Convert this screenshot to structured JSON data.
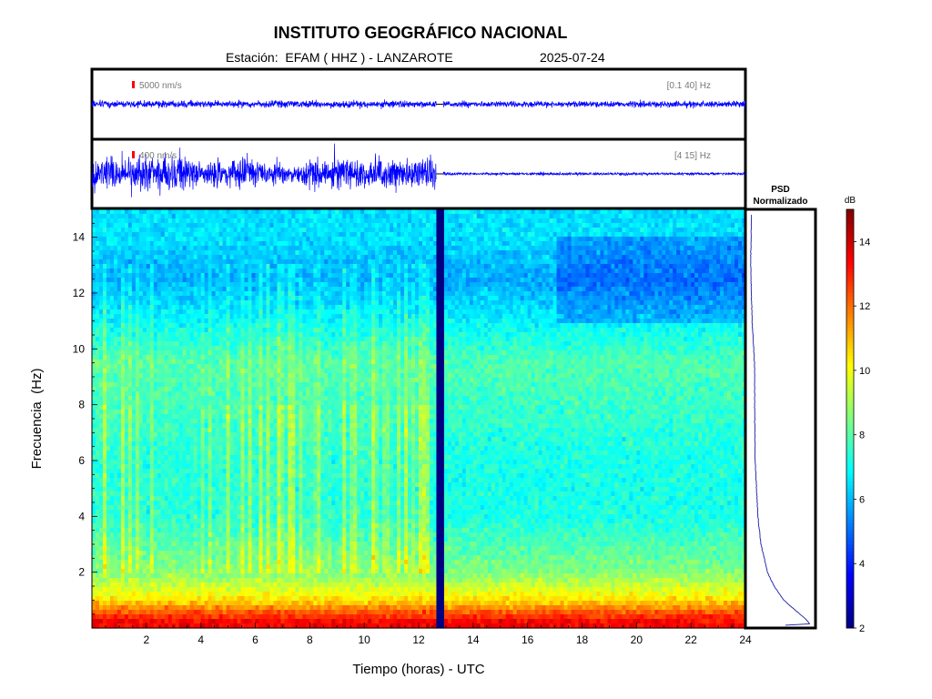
{
  "header": {
    "title": "INSTITUTO GEOGRÁFICO NACIONAL",
    "station_label": "Estación:",
    "station": "EFAM ( HHZ ) - LANZAROTE",
    "date": "2025-07-24"
  },
  "chart_data": [
    {
      "type": "line",
      "name": "broadband-seismogram",
      "scale_label": "5000 nm/s",
      "filter_label": "[0.1 40] Hz",
      "x_range_hours": [
        0,
        24
      ],
      "data_gap_hours": [
        12.65,
        12.9
      ],
      "relative_amplitude_profile": [
        {
          "x": 0,
          "amp": 0.35
        },
        {
          "x": 12.6,
          "amp": 0.35
        },
        {
          "x": 13,
          "amp": 0.3
        },
        {
          "x": 24,
          "amp": 0.3
        }
      ]
    },
    {
      "type": "line",
      "name": "filtered-seismogram",
      "scale_label": "400 nm/s",
      "filter_label": "[4 15] Hz",
      "x_range_hours": [
        0,
        24
      ],
      "data_gap_hours": [
        12.65,
        12.9
      ],
      "relative_amplitude_profile": [
        {
          "x": 0,
          "amp": 0.6
        },
        {
          "x": 2.5,
          "amp": 0.8
        },
        {
          "x": 4,
          "amp": 0.55
        },
        {
          "x": 5.5,
          "amp": 0.6
        },
        {
          "x": 6.5,
          "amp": 0.45
        },
        {
          "x": 7.7,
          "amp": 0.35
        },
        {
          "x": 8,
          "amp": 0.6
        },
        {
          "x": 10,
          "amp": 0.55
        },
        {
          "x": 12.6,
          "amp": 0.6
        },
        {
          "x": 13,
          "amp": 0.05
        },
        {
          "x": 24,
          "amp": 0.05
        }
      ]
    },
    {
      "type": "heatmap",
      "name": "spectrogram",
      "xlabel": "Tiempo (horas) - UTC",
      "ylabel": "Frecuencia  (Hz)",
      "xlim": [
        0,
        24
      ],
      "ylim": [
        0,
        15
      ],
      "x_ticks": [
        2,
        4,
        6,
        8,
        10,
        12,
        14,
        16,
        18,
        20,
        22,
        24
      ],
      "y_ticks": [
        2,
        4,
        6,
        8,
        10,
        12,
        14
      ],
      "data_gap_hours": [
        12.65,
        12.9
      ],
      "colormap": "jet",
      "colorbar": {
        "label": "dB",
        "range": [
          2,
          15
        ],
        "ticks": [
          2,
          4,
          6,
          8,
          10,
          12,
          14
        ]
      },
      "approx_power_db_by_frequency": [
        {
          "hz": 0.2,
          "db": 13.5
        },
        {
          "hz": 0.5,
          "db": 12.5
        },
        {
          "hz": 1.0,
          "db": 10.5
        },
        {
          "hz": 1.5,
          "db": 9.5
        },
        {
          "hz": 2,
          "db": 8.5
        },
        {
          "hz": 4,
          "db": 7.2
        },
        {
          "hz": 6,
          "db": 7.2
        },
        {
          "hz": 8,
          "db": 7.6
        },
        {
          "hz": 9.5,
          "db": 7.9
        },
        {
          "hz": 11,
          "db": 6.8
        },
        {
          "hz": 12.5,
          "db": 5.8
        },
        {
          "hz": 14,
          "db": 6.5
        }
      ],
      "noisy_period_hours": [
        0,
        12.6
      ]
    },
    {
      "type": "line",
      "name": "psd-normalizado",
      "title": "PSD\nNormalizado",
      "orientation": "vertical",
      "points": [
        {
          "hz": 14.8,
          "v": 0.05
        },
        {
          "hz": 13,
          "v": 0.04
        },
        {
          "hz": 11,
          "v": 0.06
        },
        {
          "hz": 9.5,
          "v": 0.1
        },
        {
          "hz": 8,
          "v": 0.1
        },
        {
          "hz": 6,
          "v": 0.11
        },
        {
          "hz": 4,
          "v": 0.15
        },
        {
          "hz": 3,
          "v": 0.2
        },
        {
          "hz": 2,
          "v": 0.3
        },
        {
          "hz": 1.5,
          "v": 0.4
        },
        {
          "hz": 1.0,
          "v": 0.55
        },
        {
          "hz": 0.6,
          "v": 0.75
        },
        {
          "hz": 0.3,
          "v": 0.9
        },
        {
          "hz": 0.15,
          "v": 0.95
        },
        {
          "hz": 0.05,
          "v": 0.2
        }
      ]
    }
  ],
  "colors": {
    "trace": "#0000ff",
    "scale_bar": "#ff0000",
    "gap": "#000080",
    "label_grey": "#777777"
  }
}
